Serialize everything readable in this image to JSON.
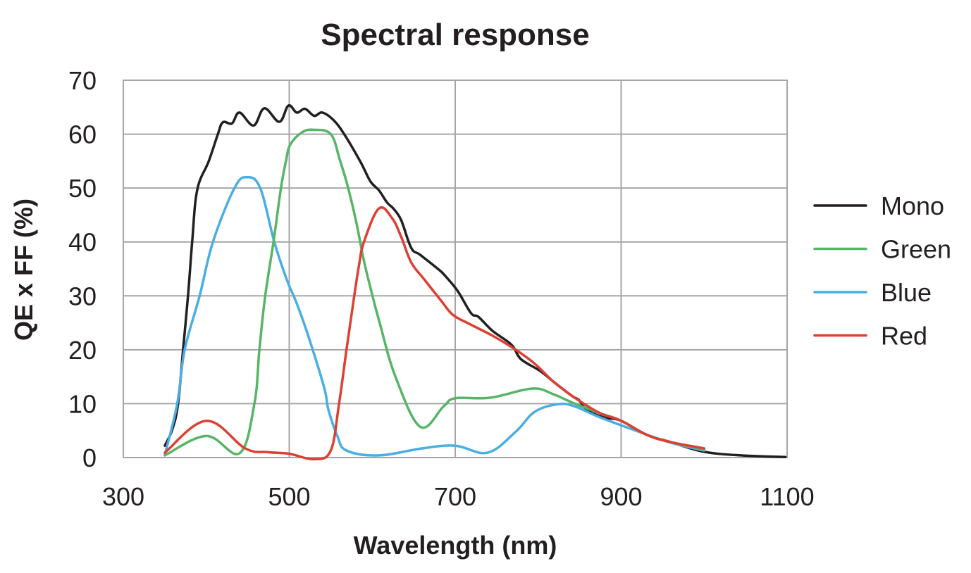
{
  "chart_data": {
    "type": "line",
    "title": "Spectral response",
    "xlabel": "Wavelength (nm)",
    "ylabel": "QE x FF (%)",
    "xlim": [
      300,
      1100
    ],
    "ylim": [
      0,
      70
    ],
    "xticks": [
      300,
      500,
      700,
      900,
      1100
    ],
    "xtick_labels": [
      "300",
      "500",
      "700",
      "900",
      "1100"
    ],
    "yticks": [
      0,
      10,
      20,
      30,
      40,
      50,
      60,
      70
    ],
    "ytick_labels": [
      "0",
      "10",
      "20",
      "30",
      "40",
      "50",
      "60",
      "70"
    ],
    "grid": true,
    "legend_position": "right",
    "series": [
      {
        "name": "Mono",
        "color": "#231f20",
        "points": [
          [
            350,
            2.2
          ],
          [
            359,
            5.2
          ],
          [
            366,
            10
          ],
          [
            372,
            20
          ],
          [
            378,
            30
          ],
          [
            383,
            40
          ],
          [
            389,
            49.6
          ],
          [
            403,
            55
          ],
          [
            414,
            60
          ],
          [
            420,
            62.2
          ],
          [
            431,
            62
          ],
          [
            440,
            64
          ],
          [
            457,
            61.6
          ],
          [
            470,
            64.8
          ],
          [
            488,
            62.3
          ],
          [
            499,
            65.3
          ],
          [
            509,
            64
          ],
          [
            519,
            64.7
          ],
          [
            530,
            63.4
          ],
          [
            540,
            64
          ],
          [
            554,
            62.5
          ],
          [
            567,
            59.8
          ],
          [
            586,
            54.8
          ],
          [
            598,
            51.2
          ],
          [
            608,
            49.6
          ],
          [
            618,
            47.3
          ],
          [
            626,
            46.1
          ],
          [
            635,
            44
          ],
          [
            647,
            38.9
          ],
          [
            658,
            37.6
          ],
          [
            680,
            34.9
          ],
          [
            688,
            33.7
          ],
          [
            703,
            30.9
          ],
          [
            719,
            26.8
          ],
          [
            728,
            26.1
          ],
          [
            745,
            23.5
          ],
          [
            768,
            20.9
          ],
          [
            779,
            18.3
          ],
          [
            802,
            16.1
          ],
          [
            819,
            14
          ],
          [
            841,
            11.4
          ],
          [
            849,
            10.7
          ],
          [
            859,
            8.8
          ],
          [
            880,
            7.4
          ],
          [
            899,
            6.9
          ],
          [
            931,
            4.2
          ],
          [
            959,
            2.9
          ],
          [
            999,
            1.1
          ],
          [
            1044,
            0.4
          ],
          [
            1098,
            0.1
          ]
        ]
      },
      {
        "name": "Green",
        "color": "#56b567",
        "points": [
          [
            350,
            0.4
          ],
          [
            400,
            4.0
          ],
          [
            440,
            0.8
          ],
          [
            458,
            10
          ],
          [
            464,
            20
          ],
          [
            471,
            30
          ],
          [
            481,
            40
          ],
          [
            490,
            50
          ],
          [
            496,
            55
          ],
          [
            501,
            58
          ],
          [
            515,
            60.3
          ],
          [
            529,
            60.8
          ],
          [
            550,
            60
          ],
          [
            561,
            55.2
          ],
          [
            571,
            50
          ],
          [
            581,
            43.5
          ],
          [
            590,
            36.5
          ],
          [
            601,
            29.6
          ],
          [
            609,
            25
          ],
          [
            628,
            15
          ],
          [
            658,
            5.7
          ],
          [
            686,
            9.5
          ],
          [
            700,
            11
          ],
          [
            742,
            11.1
          ],
          [
            793,
            12.8
          ],
          [
            819,
            11.7
          ],
          [
            844,
            10
          ],
          [
            875,
            8.2
          ],
          [
            899,
            6.9
          ],
          [
            931,
            4.2
          ],
          [
            959,
            2.9
          ],
          [
            1000,
            1.5
          ]
        ]
      },
      {
        "name": "Blue",
        "color": "#4aaee3",
        "points": [
          [
            350,
            0.5
          ],
          [
            365,
            10
          ],
          [
            374,
            20
          ],
          [
            392,
            30
          ],
          [
            408,
            40
          ],
          [
            434,
            50
          ],
          [
            449,
            52
          ],
          [
            465,
            50
          ],
          [
            482,
            40
          ],
          [
            497,
            33
          ],
          [
            508,
            29
          ],
          [
            522,
            23
          ],
          [
            542,
            13
          ],
          [
            547,
            9
          ],
          [
            558,
            4
          ],
          [
            569,
            1.3
          ],
          [
            608,
            0.4
          ],
          [
            660,
            1.7
          ],
          [
            700,
            2.2
          ],
          [
            739,
            0.9
          ],
          [
            773,
            4.8
          ],
          [
            796,
            8.5
          ],
          [
            824,
            9.9
          ],
          [
            844,
            9.5
          ],
          [
            872,
            7.6
          ],
          [
            914,
            5.2
          ],
          [
            959,
            2.8
          ],
          [
            1000,
            1.3
          ]
        ]
      },
      {
        "name": "Red",
        "color": "#de3f33",
        "points": [
          [
            350,
            0.9
          ],
          [
            400,
            6.8
          ],
          [
            447,
            1.7
          ],
          [
            474,
            1.0
          ],
          [
            500,
            0.7
          ],
          [
            530,
            -0.3
          ],
          [
            550,
            1.3
          ],
          [
            560,
            10
          ],
          [
            569,
            20
          ],
          [
            578,
            29.6
          ],
          [
            584,
            35.6
          ],
          [
            590,
            40
          ],
          [
            608,
            46.2
          ],
          [
            624,
            44.4
          ],
          [
            635,
            40.9
          ],
          [
            647,
            36.2
          ],
          [
            663,
            33
          ],
          [
            683,
            29.1
          ],
          [
            697,
            26.5
          ],
          [
            717,
            24.8
          ],
          [
            745,
            22.6
          ],
          [
            773,
            20
          ],
          [
            796,
            17.4
          ],
          [
            819,
            14
          ],
          [
            847,
            10.8
          ],
          [
            875,
            8.2
          ],
          [
            899,
            6.9
          ],
          [
            931,
            4.2
          ],
          [
            959,
            2.9
          ],
          [
            1000,
            1.7
          ]
        ]
      }
    ]
  }
}
